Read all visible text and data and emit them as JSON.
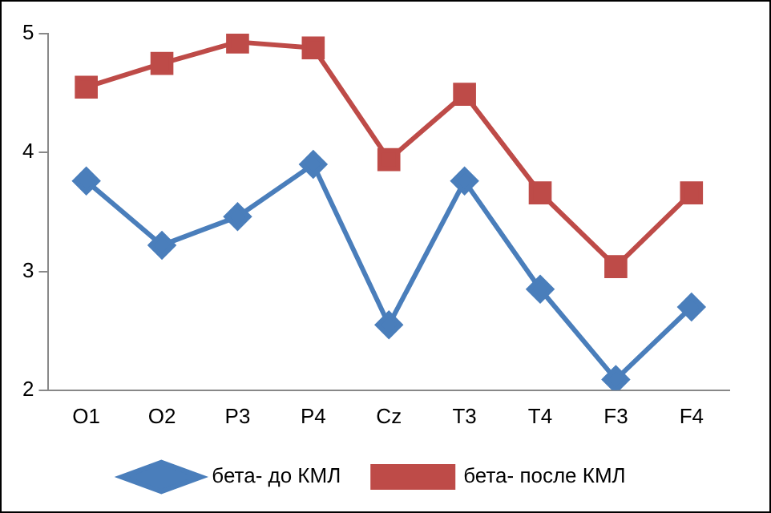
{
  "chart_data": {
    "type": "line",
    "categories": [
      "O1",
      "O2",
      "P3",
      "P4",
      "Cz",
      "T3",
      "T4",
      "F3",
      "F4"
    ],
    "series": [
      {
        "name": "бета- до КМЛ",
        "color": "#4a7ebb",
        "marker": "diamond",
        "values": [
          3.76,
          3.22,
          3.46,
          3.9,
          2.55,
          3.76,
          2.85,
          2.09,
          2.7
        ]
      },
      {
        "name": "бета- после КМЛ",
        "color": "#be4b48",
        "marker": "square",
        "values": [
          4.55,
          4.75,
          4.93,
          4.88,
          3.94,
          4.49,
          3.66,
          3.04,
          3.66
        ]
      }
    ],
    "ylim": [
      2,
      5
    ],
    "yticks": [
      2,
      3,
      4,
      5
    ],
    "grid": false,
    "legend": "bottom"
  }
}
